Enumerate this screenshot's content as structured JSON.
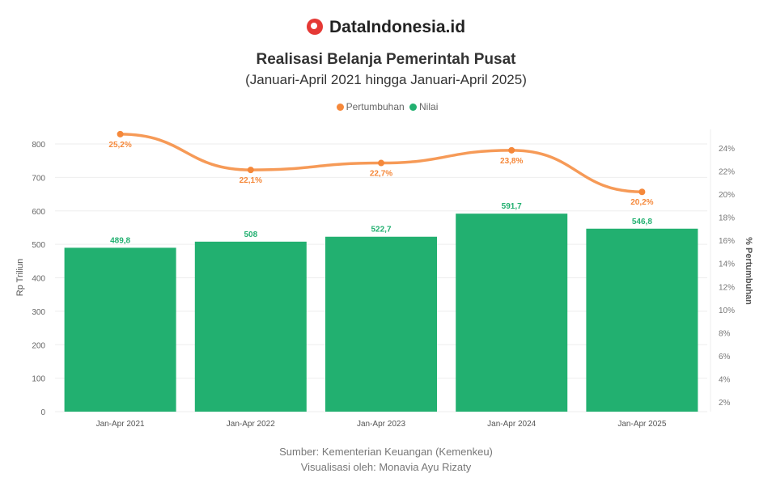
{
  "brand": {
    "name": "DataIndonesia.id",
    "accent": "#e53935"
  },
  "chart_data": {
    "type": "bar+line",
    "title": "Realisasi Belanja Pemerintah Pusat",
    "subtitle": "(Januari-April 2021 hingga Januari-April 2025)",
    "categories": [
      "Jan-Apr 2021",
      "Jan-Apr 2022",
      "Jan-Apr 2023",
      "Jan-Apr 2024",
      "Jan-Apr 2025"
    ],
    "series": [
      {
        "name": "Nilai",
        "type": "bar",
        "axis": "left",
        "color": "#22b070",
        "values": [
          489.8,
          508,
          522.7,
          591.7,
          546.8
        ],
        "labels": [
          "489,8",
          "508",
          "522,7",
          "591,7",
          "546,8"
        ]
      },
      {
        "name": "Pertumbuhan",
        "type": "line",
        "axis": "right",
        "color": "#f5883a",
        "values": [
          25.2,
          22.1,
          22.7,
          23.8,
          20.2
        ],
        "labels": [
          "25,2%",
          "22,1%",
          "22,7%",
          "23,8%",
          "20,2%"
        ]
      }
    ],
    "legend_order": [
      "Pertumbuhan",
      "Nilai"
    ],
    "legend_position": "top",
    "ylabel": "Rp Triliun",
    "ylim": [
      0,
      800
    ],
    "yticks": [
      "0",
      "100",
      "200",
      "300",
      "400",
      "500",
      "600",
      "700",
      "800"
    ],
    "y2label": "% Pertumbuhan",
    "y2lim": [
      2,
      24
    ],
    "y2ticks": [
      "2%",
      "4%",
      "6%",
      "8%",
      "10%",
      "12%",
      "14%",
      "16%",
      "18%",
      "20%",
      "22%",
      "24%"
    ],
    "grid": true
  },
  "footer": {
    "source": "Sumber: Kementerian Keuangan (Kemenkeu)",
    "credit": "Visualisasi oleh: Monavia Ayu Rizaty"
  }
}
